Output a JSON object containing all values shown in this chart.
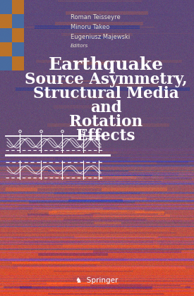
{
  "title_lines": [
    "Earthquake",
    "Source Asymmetry,",
    "Structural Media",
    "and",
    "        Rotation",
    "        Effects"
  ],
  "authors": [
    "Roman Teisseyre",
    "Minoru Takeo",
    "Eugeniusz Majewski"
  ],
  "editors_label": "Editors",
  "publisher": "Springer",
  "title_color": "#FFFFFF",
  "author_color": "#E8E0D0",
  "publisher_color": "#FFFFFF",
  "fig_width": 2.75,
  "fig_height": 4.2,
  "dpi": 100
}
